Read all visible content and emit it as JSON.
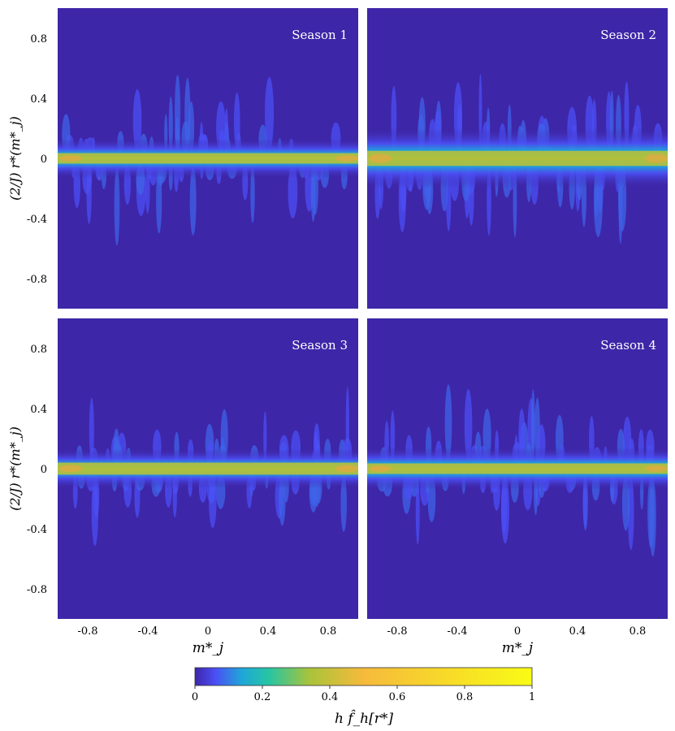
{
  "chart_data": [
    {
      "type": "heatmap",
      "panel_label": "Season 1",
      "xlim": [
        -1,
        1
      ],
      "ylim": [
        -1,
        1
      ],
      "xticks": [],
      "yticks": [
        "0.8",
        "0.4",
        "0",
        "-0.4",
        "-0.8"
      ],
      "ylabel": "(2/J) r*(m*_j)",
      "xlabel": "",
      "band": {
        "center": 0.0,
        "core_halfwidth": 0.035,
        "spread_halfwidth": 0.13,
        "peak_density": 0.55,
        "scatter_extent": 0.6
      }
    },
    {
      "type": "heatmap",
      "panel_label": "Season 2",
      "xlim": [
        -1,
        1
      ],
      "ylim": [
        -1,
        1
      ],
      "xticks": [],
      "yticks": [],
      "ylabel": "",
      "xlabel": "",
      "band": {
        "center": 0.0,
        "core_halfwidth": 0.05,
        "spread_halfwidth": 0.2,
        "peak_density": 0.5,
        "scatter_extent": 0.55
      }
    },
    {
      "type": "heatmap",
      "panel_label": "Season 3",
      "xlim": [
        -1,
        1
      ],
      "ylim": [
        -1,
        1
      ],
      "xticks": [
        "-0.8",
        "-0.4",
        "0",
        "0.4",
        "0.8"
      ],
      "yticks": [
        "0.8",
        "0.4",
        "0",
        "-0.4",
        "-0.8"
      ],
      "ylabel": "(2/J) r*(m*_j)",
      "xlabel": "m*_j",
      "band": {
        "center": 0.0,
        "core_halfwidth": 0.04,
        "spread_halfwidth": 0.13,
        "peak_density": 0.55,
        "scatter_extent": 0.45
      }
    },
    {
      "type": "heatmap",
      "panel_label": "Season 4",
      "xlim": [
        -1,
        1
      ],
      "ylim": [
        -1,
        1
      ],
      "xticks": [
        "-0.8",
        "-0.4",
        "0",
        "0.4",
        "0.8"
      ],
      "yticks": [],
      "ylabel": "",
      "xlabel": "m*_j",
      "band": {
        "center": 0.0,
        "core_halfwidth": 0.035,
        "spread_halfwidth": 0.14,
        "peak_density": 0.55,
        "scatter_extent": 0.6
      }
    }
  ],
  "colorbar": {
    "label": "h f̂_h[r*]",
    "ticks": [
      "0",
      "0.2",
      "0.4",
      "0.6",
      "0.8",
      "1"
    ],
    "range": [
      0,
      1
    ],
    "colors": [
      "#3e26a8",
      "#4b4ff5",
      "#1fa7d8",
      "#27c5a3",
      "#a9c33a",
      "#f6ba3c",
      "#f9fb15"
    ]
  }
}
